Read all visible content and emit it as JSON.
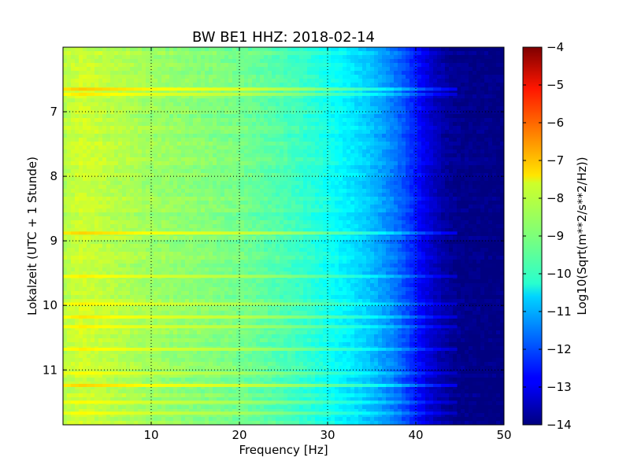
{
  "chart_data": {
    "type": "heatmap",
    "title": "BW BE1 HHZ: 2018-02-14",
    "xlabel": "Frequency [Hz]",
    "ylabel": "Lokalzeit (UTC + 1 Stunde)",
    "xlim": [
      0,
      50
    ],
    "ylim": [
      6.0,
      11.85
    ],
    "y_inverted": true,
    "x_ticks": [
      10,
      20,
      30,
      40,
      50
    ],
    "y_ticks": [
      7,
      8,
      9,
      10,
      11
    ],
    "grid": true,
    "colorbar": {
      "label": "Log10(Sqrt(m**2/s**2/Hz))",
      "range": [
        -14,
        -4
      ],
      "ticks": [
        -4,
        -5,
        -6,
        -7,
        -8,
        -9,
        -10,
        -11,
        -12,
        -13,
        -14
      ],
      "colormap": "jet"
    },
    "spectrum_profile": {
      "frequency_hz": [
        0,
        2,
        5,
        10,
        15,
        20,
        25,
        28,
        30,
        33,
        35,
        37,
        38,
        39,
        40,
        41,
        42,
        43,
        44,
        45,
        50
      ],
      "level": [
        -8.5,
        -8.2,
        -8.4,
        -8.7,
        -8.9,
        -9.1,
        -9.5,
        -9.8,
        -10.1,
        -10.5,
        -10.9,
        -11.4,
        -11.7,
        -12.1,
        -12.5,
        -13.0,
        -13.3,
        -13.6,
        -13.8,
        -13.9,
        -14.0
      ]
    },
    "noise_bands": [
      {
        "time": 6.65,
        "offset": 1.0
      },
      {
        "time": 6.73,
        "offset": 0.7
      },
      {
        "time": 8.88,
        "offset": 0.9
      },
      {
        "time": 9.55,
        "offset": 0.6
      },
      {
        "time": 9.98,
        "offset": 0.6
      },
      {
        "time": 10.18,
        "offset": 0.7
      },
      {
        "time": 10.33,
        "offset": 0.6
      },
      {
        "time": 10.68,
        "offset": 0.6
      },
      {
        "time": 11.05,
        "offset": 0.5
      },
      {
        "time": 11.24,
        "offset": 0.9
      },
      {
        "time": 11.5,
        "offset": 0.5
      },
      {
        "time": 11.67,
        "offset": 0.5
      }
    ]
  }
}
